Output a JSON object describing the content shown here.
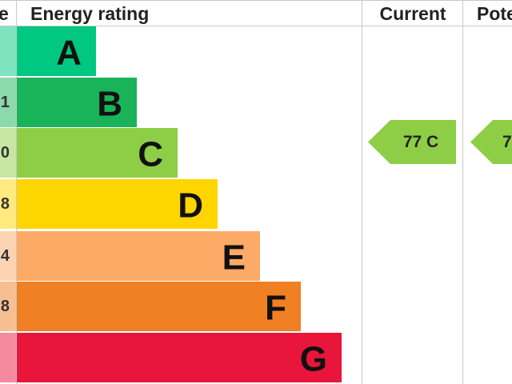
{
  "header": {
    "score": "e",
    "rating": "Energy rating",
    "current": "Current",
    "potential": "Pote"
  },
  "bands": [
    {
      "letter": "A",
      "score": "",
      "color": "#00c781"
    },
    {
      "letter": "B",
      "score": "1",
      "color": "#19b459"
    },
    {
      "letter": "C",
      "score": "0",
      "color": "#8dce46"
    },
    {
      "letter": "D",
      "score": "8",
      "color": "#ffd500"
    },
    {
      "letter": "E",
      "score": "4",
      "color": "#fcaa65"
    },
    {
      "letter": "F",
      "score": "8",
      "color": "#ef8023"
    },
    {
      "letter": "G",
      "score": "",
      "color": "#e9153b"
    }
  ],
  "current": {
    "label": "77 C",
    "color": "#8dce46"
  },
  "potential": {
    "label": "7",
    "color": "#8dce46"
  }
}
